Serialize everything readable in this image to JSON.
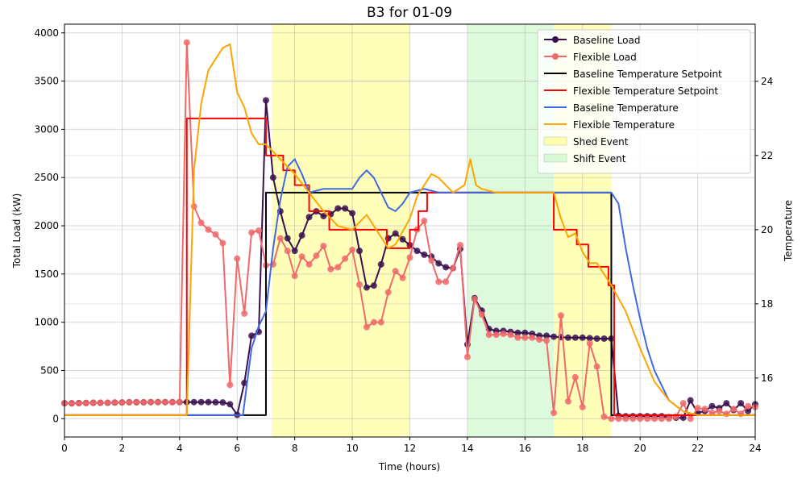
{
  "chart_data": {
    "type": "line",
    "title": "B3 for 01-09",
    "xlabel": "Time (hours)",
    "ylabel": "Total Load (kW)",
    "y2label": "Temperature",
    "xlim": [
      0,
      24
    ],
    "xticks": [
      0,
      2,
      4,
      6,
      8,
      10,
      12,
      14,
      16,
      18,
      20,
      22,
      24
    ],
    "ylim": [
      -190,
      4090
    ],
    "yticks": [
      0,
      500,
      1000,
      1500,
      2000,
      2500,
      3000,
      3500,
      4000
    ],
    "y2lim": [
      14.41,
      25.54
    ],
    "y2ticks": [
      16,
      18,
      20,
      22,
      24
    ],
    "grid": true,
    "legend": "upper right",
    "x": [
      0,
      0.25,
      0.5,
      0.75,
      1,
      1.25,
      1.5,
      1.75,
      2,
      2.25,
      2.5,
      2.75,
      3,
      3.25,
      3.5,
      3.75,
      4,
      4.25,
      4.5,
      4.75,
      5,
      5.25,
      5.5,
      5.75,
      6,
      6.25,
      6.5,
      6.75,
      7,
      7.25,
      7.5,
      7.75,
      8,
      8.25,
      8.5,
      8.75,
      9,
      9.25,
      9.5,
      9.75,
      10,
      10.25,
      10.5,
      10.75,
      11,
      11.25,
      11.5,
      11.75,
      12,
      12.25,
      12.5,
      12.75,
      13,
      13.25,
      13.5,
      13.75,
      14,
      14.25,
      14.5,
      14.75,
      15,
      15.25,
      15.5,
      15.75,
      16,
      16.25,
      16.5,
      16.75,
      17,
      17.25,
      17.5,
      17.75,
      18,
      18.25,
      18.5,
      18.75,
      19,
      19.25,
      19.5,
      19.75,
      20,
      20.25,
      20.5,
      20.75,
      21,
      21.25,
      21.5,
      21.75,
      22,
      22.25,
      22.5,
      22.75,
      23,
      23.25,
      23.5,
      23.75,
      24
    ],
    "series": [
      {
        "name": "Baseline Load",
        "color": "#3b0f4f",
        "marker": true,
        "values": [
          160,
          160,
          162,
          163,
          165,
          165,
          165,
          167,
          168,
          170,
          170,
          170,
          172,
          172,
          172,
          172,
          172,
          172,
          172,
          172,
          172,
          170,
          168,
          150,
          40,
          370,
          860,
          900,
          3300,
          2500,
          2150,
          1870,
          1740,
          1900,
          2090,
          2150,
          2100,
          2120,
          2180,
          2180,
          2130,
          1740,
          1360,
          1380,
          1600,
          1870,
          1920,
          1860,
          1800,
          1740,
          1700,
          1680,
          1610,
          1570,
          1560,
          1760,
          770,
          1250,
          1120,
          930,
          910,
          910,
          900,
          890,
          890,
          880,
          860,
          860,
          850,
          845,
          840,
          840,
          840,
          835,
          830,
          830,
          830,
          30,
          25,
          25,
          25,
          25,
          25,
          25,
          15,
          10,
          10,
          190,
          60,
          80,
          130,
          110,
          160,
          90,
          160,
          80,
          150
        ]
      },
      {
        "name": "Flexible Load",
        "color": "#f06a6a",
        "marker": true,
        "values": [
          160,
          158,
          160,
          162,
          163,
          165,
          165,
          167,
          168,
          170,
          170,
          170,
          172,
          172,
          172,
          172,
          172,
          3900,
          2200,
          2030,
          1960,
          1910,
          1820,
          350,
          1660,
          1090,
          1930,
          1950,
          1590,
          1600,
          1870,
          1740,
          1480,
          1680,
          1600,
          1690,
          1790,
          1550,
          1570,
          1660,
          1750,
          1390,
          950,
          1000,
          1000,
          1310,
          1530,
          1460,
          1670,
          1960,
          2050,
          1640,
          1420,
          1420,
          1560,
          1800,
          640,
          1240,
          1080,
          870,
          870,
          880,
          870,
          840,
          840,
          840,
          820,
          810,
          60,
          1070,
          180,
          430,
          120,
          780,
          540,
          20,
          0,
          0,
          0,
          0,
          0,
          0,
          0,
          0,
          0,
          20,
          160,
          0,
          110,
          100,
          60,
          80,
          50,
          100,
          50,
          130,
          120
        ]
      },
      {
        "name": "Baseline Temperature Setpoint",
        "color": "#000000",
        "axis": "y2",
        "marker": false,
        "x": [
          0,
          7,
          7,
          19,
          19,
          24
        ],
        "values": [
          15,
          15,
          21,
          21,
          15,
          15
        ]
      },
      {
        "name": "Flexible Temperature Setpoint",
        "color": "#ff0000",
        "axis": "y2",
        "marker": false,
        "x": [
          0,
          4.25,
          4.25,
          7,
          7,
          7.6,
          7.6,
          8,
          8,
          8.5,
          8.5,
          9.2,
          9.2,
          11.2,
          11.2,
          12,
          12,
          12.3,
          12.3,
          12.6,
          12.6,
          17,
          17,
          17.8,
          17.8,
          18.2,
          18.2,
          18.9,
          18.9,
          19.1,
          19.1,
          24
        ],
        "values": [
          15,
          15,
          23,
          23,
          22,
          22,
          21.6,
          21.6,
          21.2,
          21.2,
          20.5,
          20.5,
          20,
          20,
          19.5,
          19.5,
          20,
          20,
          20.5,
          20.5,
          21,
          21,
          20,
          20,
          19.6,
          19.6,
          19,
          19,
          18.5,
          18.5,
          15,
          15
        ]
      },
      {
        "name": "Baseline Temperature",
        "color": "#4169e1",
        "axis": "y2",
        "marker": false,
        "x": [
          0,
          6.2,
          6.5,
          6.75,
          7,
          7.25,
          7.5,
          7.75,
          8,
          8.25,
          8.5,
          9,
          9.5,
          10,
          10.25,
          10.5,
          10.75,
          11,
          11.25,
          11.5,
          11.75,
          12,
          12.5,
          13,
          19,
          19.25,
          19.5,
          19.75,
          20,
          20.25,
          20.5,
          21,
          21.5,
          22,
          24
        ],
        "values": [
          15,
          15,
          16.8,
          17.4,
          17.8,
          19.5,
          20.8,
          21.7,
          21.9,
          21.5,
          21.0,
          21.1,
          21.1,
          21.1,
          21.4,
          21.6,
          21.4,
          21.0,
          20.6,
          20.5,
          20.7,
          21.0,
          21.1,
          21.0,
          21.0,
          20.7,
          19.5,
          18.5,
          17.6,
          16.8,
          16.2,
          15.4,
          15.1,
          15.0,
          15.0
        ]
      },
      {
        "name": "Flexible Temperature",
        "color": "#ffa500",
        "axis": "y2",
        "marker": false,
        "x": [
          0,
          4.25,
          4.5,
          4.75,
          5,
          5.5,
          5.75,
          6,
          6.25,
          6.5,
          6.75,
          7,
          7.5,
          8,
          8.5,
          9,
          9.5,
          10,
          10.5,
          11,
          11.25,
          11.5,
          12,
          12.25,
          12.5,
          12.75,
          13,
          13.5,
          13.9,
          14.1,
          14.3,
          14.5,
          15,
          17,
          17.25,
          17.5,
          17.75,
          18,
          18.25,
          18.5,
          18.75,
          19,
          19.5,
          20,
          20.5,
          21,
          21.5,
          22,
          24
        ],
        "values": [
          15,
          15,
          21.6,
          23.4,
          24.3,
          24.9,
          25.0,
          23.7,
          23.3,
          22.6,
          22.3,
          22.3,
          21.9,
          21.5,
          21.0,
          20.5,
          20.1,
          20.0,
          20.4,
          19.8,
          19.5,
          19.6,
          20.3,
          20.9,
          21.2,
          21.5,
          21.4,
          21.0,
          21.2,
          21.9,
          21.2,
          21.1,
          21.0,
          21.0,
          20.3,
          19.8,
          19.9,
          19.4,
          19.1,
          19.1,
          18.8,
          18.5,
          17.8,
          16.8,
          15.9,
          15.4,
          15.1,
          15.0,
          15.0
        ]
      }
    ],
    "events": [
      {
        "name": "Shed Event",
        "color": "#ffff66",
        "spans": [
          [
            7.2,
            12
          ],
          [
            17,
            19
          ]
        ]
      },
      {
        "name": "Shift Event",
        "color": "#b3f5b3",
        "spans": [
          [
            14,
            17
          ]
        ]
      }
    ]
  }
}
